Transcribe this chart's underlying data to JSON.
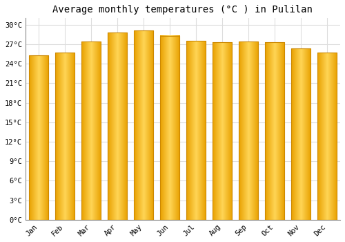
{
  "title": "Average monthly temperatures (°C ) in Pulilan",
  "months": [
    "Jan",
    "Feb",
    "Mar",
    "Apr",
    "May",
    "Jun",
    "Jul",
    "Aug",
    "Sep",
    "Oct",
    "Nov",
    "Dec"
  ],
  "values": [
    25.3,
    25.7,
    27.4,
    28.8,
    29.1,
    28.3,
    27.5,
    27.3,
    27.4,
    27.3,
    26.3,
    25.7
  ],
  "bar_color_left": "#E8A000",
  "bar_color_center": "#FFD050",
  "bar_color_right": "#E8A000",
  "ylim": [
    0,
    31
  ],
  "yticks": [
    0,
    3,
    6,
    9,
    12,
    15,
    18,
    21,
    24,
    27,
    30
  ],
  "ytick_labels": [
    "0°C",
    "3°C",
    "6°C",
    "9°C",
    "12°C",
    "15°C",
    "18°C",
    "21°C",
    "24°C",
    "27°C",
    "30°C"
  ],
  "background_color": "#ffffff",
  "grid_color": "#dddddd",
  "title_fontsize": 10,
  "tick_fontsize": 7.5,
  "font_family": "monospace"
}
